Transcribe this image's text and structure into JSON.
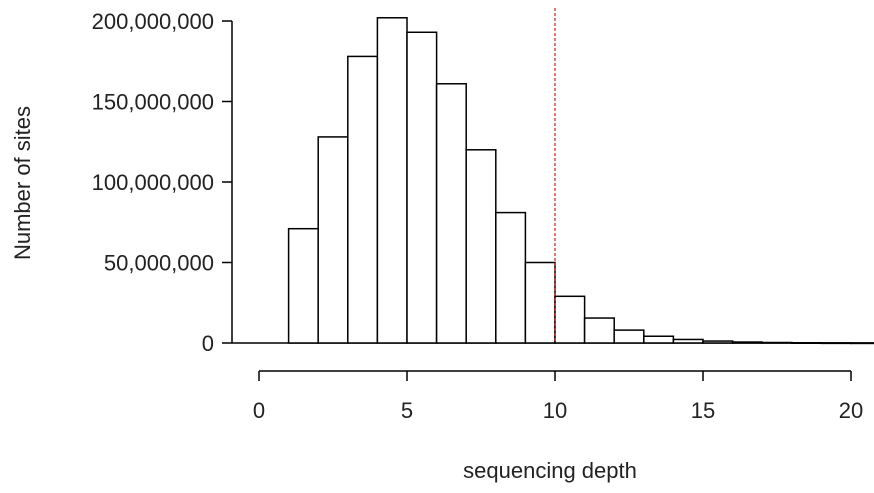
{
  "chart_data": {
    "type": "bar",
    "subtype": "histogram",
    "title": "",
    "xlabel": "sequencing depth",
    "ylabel": "Number of sites",
    "bin_width": 1,
    "bins": [
      {
        "x0": 1,
        "x1": 2,
        "value": 71000000
      },
      {
        "x0": 2,
        "x1": 3,
        "value": 128000000
      },
      {
        "x0": 3,
        "x1": 4,
        "value": 178000000
      },
      {
        "x0": 4,
        "x1": 5,
        "value": 202000000
      },
      {
        "x0": 5,
        "x1": 6,
        "value": 193000000
      },
      {
        "x0": 6,
        "x1": 7,
        "value": 161000000
      },
      {
        "x0": 7,
        "x1": 8,
        "value": 120000000
      },
      {
        "x0": 8,
        "x1": 9,
        "value": 81000000
      },
      {
        "x0": 9,
        "x1": 10,
        "value": 50000000
      },
      {
        "x0": 10,
        "x1": 11,
        "value": 29000000
      },
      {
        "x0": 11,
        "x1": 12,
        "value": 15500000
      },
      {
        "x0": 12,
        "x1": 13,
        "value": 8000000
      },
      {
        "x0": 13,
        "x1": 14,
        "value": 4200000
      },
      {
        "x0": 14,
        "x1": 15,
        "value": 2200000
      },
      {
        "x0": 15,
        "x1": 16,
        "value": 1200000
      },
      {
        "x0": 16,
        "x1": 17,
        "value": 600000
      },
      {
        "x0": 17,
        "x1": 18,
        "value": 300000
      },
      {
        "x0": 18,
        "x1": 19,
        "value": 150000
      },
      {
        "x0": 19,
        "x1": 20,
        "value": 80000
      },
      {
        "x0": 20,
        "x1": 21,
        "value": 40000
      }
    ],
    "xlim": [
      0,
      20
    ],
    "ylim": [
      0,
      200000000
    ],
    "xticks": [
      0,
      5,
      10,
      15,
      20
    ],
    "xtick_labels": [
      "0",
      "5",
      "10",
      "15",
      "20"
    ],
    "yticks": [
      0,
      50000000,
      100000000,
      150000000,
      200000000
    ],
    "ytick_labels": [
      "0",
      "50,000,000",
      "100,000,000",
      "150,000,000",
      "200,000,000"
    ],
    "reference_line": {
      "x": 10,
      "style": "dashed",
      "color": "#cc2222"
    },
    "bar_fill": "#ffffff",
    "bar_stroke": "#000000",
    "grid": false,
    "legend": "none"
  }
}
